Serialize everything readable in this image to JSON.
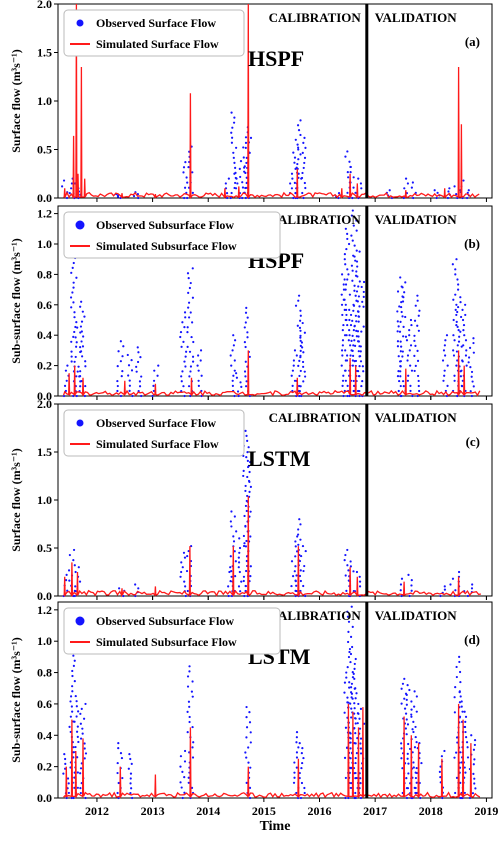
{
  "figure": {
    "xlabel": "Time",
    "x_ticks": [
      "2012",
      "2013",
      "2014",
      "2015",
      "2016",
      "2017",
      "2018",
      "2019"
    ],
    "period_labels": {
      "calibration": "CALIBRATION",
      "validation": "VALIDATION"
    },
    "split_year": 2016.85
  },
  "colors": {
    "observed": "#1414ff",
    "simulated": "#ff1a1a",
    "divider": "#000000"
  },
  "chart_data": [
    {
      "type": "line",
      "panel": "(a)",
      "model": "HSPF",
      "ylabel": "Surface flow (m³s⁻¹)",
      "ylim": [
        0,
        2.0
      ],
      "yticks": [
        "0.0",
        "0.5",
        "1.0",
        "1.5",
        "2.0"
      ],
      "legend": "top-left",
      "series": [
        {
          "name": "Observed Surface Flow",
          "kind": "scatter",
          "x": [
            2011.42,
            2011.55,
            2011.62,
            2011.7,
            2012.4,
            2012.7,
            2013.6,
            2013.67,
            2014.35,
            2014.45,
            2014.52,
            2014.62,
            2014.68,
            2014.72,
            2015.52,
            2015.58,
            2015.62,
            2015.7,
            2016.35,
            2016.52,
            2016.6,
            2016.7,
            2017.25,
            2017.55,
            2017.7,
            2018.12,
            2018.35,
            2018.48,
            2018.55,
            2018.7
          ],
          "values": [
            0.18,
            0.2,
            0.15,
            0.1,
            0.04,
            0.06,
            0.37,
            0.53,
            0.2,
            0.88,
            0.3,
            0.38,
            0.73,
            0.62,
            0.3,
            0.52,
            0.8,
            0.62,
            0.05,
            0.48,
            0.32,
            0.2,
            0.08,
            0.2,
            0.16,
            0.08,
            0.1,
            0.12,
            0.18,
            0.08
          ]
        },
        {
          "name": "Simulated Surface Flow",
          "kind": "line",
          "x": [
            2011.42,
            2011.58,
            2011.63,
            2011.66,
            2011.72,
            2011.78,
            2012.45,
            2013.05,
            2013.68,
            2014.3,
            2014.55,
            2014.72,
            2015.6,
            2016.4,
            2016.55,
            2016.68,
            2017.55,
            2018.25,
            2018.5,
            2018.55
          ],
          "values": [
            0.1,
            0.64,
            2.0,
            0.25,
            1.35,
            0.2,
            0.05,
            0.04,
            1.08,
            0.1,
            0.12,
            2.0,
            0.3,
            0.1,
            0.25,
            0.15,
            0.08,
            0.1,
            1.35,
            0.76
          ]
        }
      ]
    },
    {
      "type": "line",
      "panel": "(b)",
      "model": "HSPF",
      "ylabel": "Sub-surface flow (m³s⁻¹)",
      "ylim": [
        0,
        1.25
      ],
      "yticks": [
        "0.0",
        "0.2",
        "0.4",
        "0.6",
        "0.8",
        "1.0",
        "1.2"
      ],
      "legend": "top-left",
      "series": [
        {
          "name": "Observed Subsurface Flow",
          "kind": "scatter",
          "x": [
            2011.45,
            2011.58,
            2011.65,
            2011.75,
            2012.42,
            2012.6,
            2012.75,
            2013.05,
            2013.55,
            2013.68,
            2013.85,
            2014.45,
            2014.55,
            2014.7,
            2015.55,
            2015.62,
            2015.7,
            2016.45,
            2016.5,
            2016.58,
            2016.62,
            2016.68,
            2016.75,
            2017.45,
            2017.5,
            2017.62,
            2017.75,
            2018.25,
            2018.45,
            2018.52,
            2018.6,
            2018.72
          ],
          "values": [
            0.2,
            0.94,
            0.45,
            0.62,
            0.36,
            0.27,
            0.32,
            0.2,
            0.55,
            0.84,
            0.3,
            0.4,
            0.15,
            0.58,
            0.3,
            0.66,
            0.48,
            0.8,
            1.1,
            0.6,
            1.22,
            0.95,
            0.75,
            0.72,
            0.78,
            0.5,
            0.66,
            0.4,
            0.9,
            0.65,
            0.6,
            0.38
          ]
        },
        {
          "name": "Simulated Subsurface Flow",
          "kind": "line",
          "x": [
            2011.5,
            2011.6,
            2011.75,
            2012.5,
            2013.05,
            2013.7,
            2014.72,
            2015.6,
            2016.55,
            2016.65,
            2017.55,
            2018.5,
            2018.6
          ],
          "values": [
            0.15,
            0.2,
            0.12,
            0.1,
            0.08,
            0.12,
            0.3,
            0.12,
            0.25,
            0.2,
            0.18,
            0.3,
            0.2
          ]
        }
      ]
    },
    {
      "type": "line",
      "panel": "(c)",
      "model": "LSTM",
      "ylabel": "Surface flow (m³s⁻¹)",
      "ylim": [
        0,
        2.0
      ],
      "yticks": [
        "0.0",
        "0.5",
        "1.0",
        "1.5",
        "2.0"
      ],
      "legend": "top-left",
      "series": [
        {
          "name": "Observed Surface Flow",
          "kind": "scatter",
          "x": [
            2011.42,
            2011.55,
            2011.65,
            2012.45,
            2012.7,
            2013.55,
            2013.67,
            2014.4,
            2014.45,
            2014.6,
            2014.68,
            2014.72,
            2015.55,
            2015.62,
            2015.7,
            2016.5,
            2016.58,
            2016.68,
            2017.5,
            2017.65,
            2018.2,
            2018.4,
            2018.55,
            2018.7
          ],
          "values": [
            0.22,
            0.48,
            0.3,
            0.08,
            0.12,
            0.45,
            0.52,
            0.3,
            0.88,
            0.6,
            1.72,
            1.55,
            0.62,
            0.8,
            0.52,
            0.48,
            0.36,
            0.25,
            0.18,
            0.22,
            0.1,
            0.18,
            0.25,
            0.12
          ]
        },
        {
          "name": "Simulated Surface Flow",
          "kind": "line",
          "x": [
            2011.42,
            2011.55,
            2011.65,
            2012.45,
            2013.05,
            2013.67,
            2014.45,
            2014.72,
            2015.62,
            2016.55,
            2016.68,
            2017.52,
            2018.5
          ],
          "values": [
            0.2,
            0.35,
            0.25,
            0.08,
            0.1,
            0.52,
            0.52,
            1.04,
            0.52,
            0.3,
            0.2,
            0.15,
            0.2
          ]
        }
      ]
    },
    {
      "type": "line",
      "panel": "(d)",
      "model": "LSTM",
      "ylabel": "Sub-surface flow (m³s⁻¹)",
      "ylim": [
        0,
        1.25
      ],
      "yticks": [
        "0.0",
        "0.2",
        "0.4",
        "0.6",
        "0.8",
        "1.0",
        "1.2"
      ],
      "legend": "top-left",
      "series": [
        {
          "name": "Observed Subsurface Flow",
          "kind": "scatter",
          "x": [
            2011.45,
            2011.55,
            2011.62,
            2011.75,
            2012.42,
            2012.6,
            2013.55,
            2013.68,
            2014.72,
            2015.58,
            2015.68,
            2016.5,
            2016.55,
            2016.6,
            2016.66,
            2016.75,
            2017.52,
            2017.62,
            2017.7,
            2017.78,
            2018.2,
            2018.48,
            2018.55,
            2018.62,
            2018.75
          ],
          "values": [
            0.28,
            0.94,
            0.65,
            0.6,
            0.35,
            0.28,
            0.3,
            0.84,
            0.58,
            0.42,
            0.35,
            0.8,
            1.22,
            0.95,
            0.7,
            0.6,
            0.76,
            0.72,
            0.68,
            0.35,
            0.3,
            0.9,
            0.68,
            0.55,
            0.4
          ]
        },
        {
          "name": "Simulated Subsurface Flow",
          "kind": "line",
          "x": [
            2011.45,
            2011.55,
            2011.62,
            2011.75,
            2012.42,
            2013.05,
            2013.68,
            2014.72,
            2015.62,
            2016.52,
            2016.6,
            2016.7,
            2016.78,
            2017.52,
            2017.65,
            2017.78,
            2018.2,
            2018.5,
            2018.58,
            2018.72
          ],
          "values": [
            0.2,
            0.5,
            0.3,
            0.38,
            0.2,
            0.15,
            0.45,
            0.2,
            0.25,
            0.6,
            0.55,
            0.45,
            0.58,
            0.52,
            0.4,
            0.35,
            0.25,
            0.6,
            0.5,
            0.35
          ]
        }
      ]
    }
  ]
}
